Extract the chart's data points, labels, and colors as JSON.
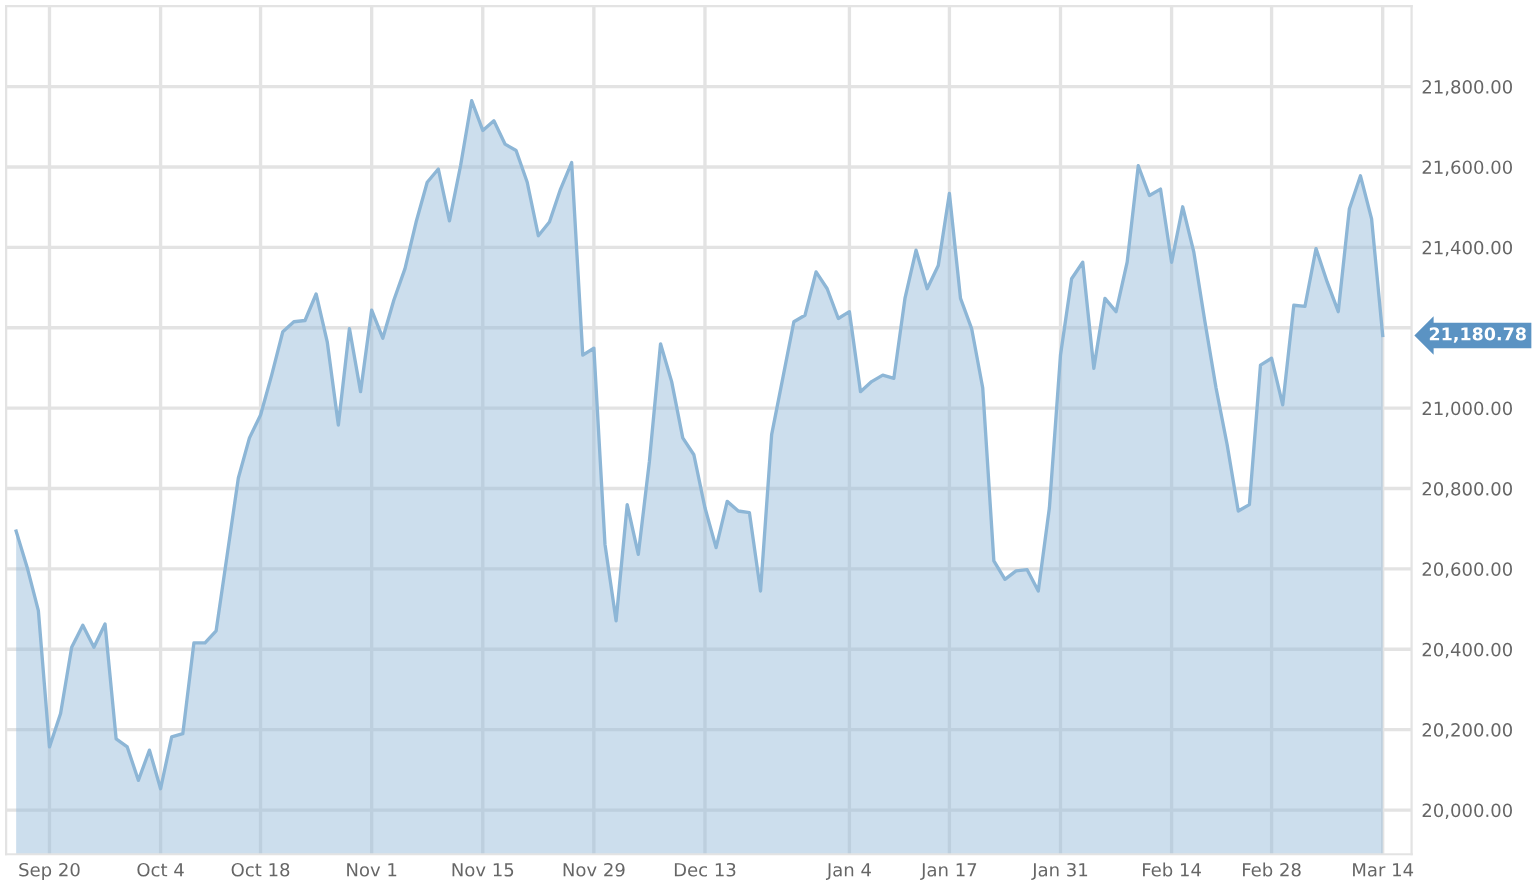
{
  "chart_data": {
    "type": "area",
    "categories": [
      null,
      null,
      null,
      "Sep 20",
      null,
      null,
      null,
      null,
      null,
      null,
      null,
      null,
      null,
      "Oct 4",
      null,
      null,
      null,
      null,
      null,
      null,
      null,
      null,
      "Oct 18",
      null,
      null,
      null,
      null,
      null,
      null,
      null,
      null,
      null,
      "Nov 1",
      null,
      null,
      null,
      null,
      null,
      null,
      null,
      null,
      null,
      "Nov 15",
      null,
      null,
      null,
      null,
      null,
      null,
      null,
      null,
      null,
      "Nov 29",
      null,
      null,
      null,
      null,
      null,
      null,
      null,
      null,
      null,
      "Dec 13",
      null,
      null,
      null,
      null,
      null,
      null,
      null,
      null,
      null,
      null,
      null,
      null,
      "Jan 4",
      null,
      null,
      null,
      null,
      null,
      null,
      null,
      null,
      "Jan 17",
      null,
      null,
      null,
      null,
      null,
      null,
      null,
      null,
      null,
      "Jan 31",
      null,
      null,
      null,
      null,
      null,
      null,
      null,
      null,
      null,
      "Feb 14",
      null,
      null,
      null,
      null,
      null,
      null,
      null,
      null,
      "Feb 28",
      null,
      null,
      null,
      null,
      null,
      null,
      null,
      null,
      null,
      "Mar 14"
    ],
    "series": [
      {
        "color": "#8db6d6",
        "values": [
          20694,
          20603,
          20496,
          20157,
          20240,
          20405,
          20460,
          20405,
          20463,
          20177,
          20157,
          20074,
          20149,
          20053,
          20182,
          20190,
          20416,
          20416,
          20446,
          20636,
          20826,
          20926,
          20983,
          21082,
          21190,
          21215,
          21218,
          21284,
          21165,
          20958,
          21198,
          21041,
          21244,
          21174,
          21269,
          21347,
          21463,
          21562,
          21595,
          21466,
          21603,
          21765,
          21691,
          21715,
          21657,
          21641,
          21562,
          21429,
          21463,
          21545,
          21611,
          21132,
          21149,
          20661,
          20471,
          20760,
          20636,
          20868,
          21160,
          21066,
          20926,
          20884,
          20752,
          20653,
          20768,
          20744,
          20740,
          20545,
          20934,
          21074,
          21215,
          21231,
          21339,
          21297,
          21223,
          21240,
          21041,
          21066,
          21082,
          21074,
          21273,
          21393,
          21297,
          21355,
          21534,
          21273,
          21198,
          21050,
          20620,
          20574,
          20595,
          20598,
          20545,
          20752,
          21132,
          21322,
          21363,
          21099,
          21273,
          21240,
          21363,
          21603,
          21529,
          21545,
          21363,
          21501,
          21388,
          21215,
          21050,
          20909,
          20744,
          20760,
          21107,
          21124,
          21008,
          21256,
          21253,
          21397,
          21314,
          21240,
          21496,
          21578,
          21471,
          21180.78
        ]
      }
    ],
    "ylim": [
      19890,
      22000
    ],
    "yticks": [
      {
        "value": 20000,
        "label": "20,000.00"
      },
      {
        "value": 20200,
        "label": "20,200.00"
      },
      {
        "value": 20400,
        "label": "20,400.00"
      },
      {
        "value": 20600,
        "label": "20,600.00"
      },
      {
        "value": 20800,
        "label": "20,800.00"
      },
      {
        "value": 21000,
        "label": "21,000.00"
      },
      {
        "value": 21200,
        "label": null
      },
      {
        "value": 21400,
        "label": "21,400.00"
      },
      {
        "value": 21600,
        "label": "21,600.00"
      },
      {
        "value": 21800,
        "label": "21,800.00"
      }
    ],
    "annotations": [
      "21,180.78"
    ],
    "grid": true
  }
}
